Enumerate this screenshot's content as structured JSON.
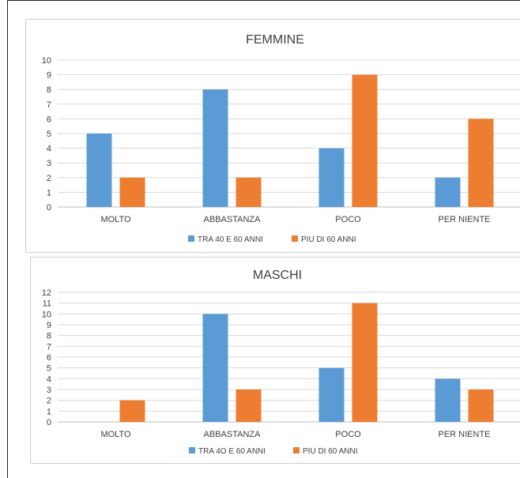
{
  "chart_data": [
    {
      "type": "bar",
      "title": "FEMMINE",
      "categories": [
        "MOLTO",
        "ABBASTANZA",
        "POCO",
        "PER NIENTE"
      ],
      "series": [
        {
          "name": "TRA 40 E 60 ANNI",
          "values": [
            5,
            8,
            4,
            2
          ],
          "color": "#5B9BD5"
        },
        {
          "name": "PIU DI 60 ANNI",
          "values": [
            2,
            2,
            9,
            6
          ],
          "color": "#ED7D31"
        }
      ],
      "ylim": [
        0,
        10
      ],
      "yticks": [
        0,
        1,
        2,
        3,
        4,
        5,
        6,
        7,
        8,
        9,
        10
      ],
      "grid": true,
      "legend": "bottom"
    },
    {
      "type": "bar",
      "title": "MASCHI",
      "categories": [
        "MOLTO",
        "ABBASTANZA",
        "POCO",
        "PER NIENTE"
      ],
      "series": [
        {
          "name": "TRA 4O E 60 ANNI",
          "values": [
            0,
            10,
            5,
            4
          ],
          "color": "#5B9BD5"
        },
        {
          "name": "PIU DI 60 ANNI",
          "values": [
            2,
            3,
            11,
            3
          ],
          "color": "#ED7D31"
        }
      ],
      "ylim": [
        0,
        12
      ],
      "yticks": [
        0,
        1,
        2,
        3,
        4,
        5,
        6,
        7,
        8,
        9,
        10,
        11,
        12
      ],
      "grid": true,
      "legend": "bottom"
    }
  ]
}
